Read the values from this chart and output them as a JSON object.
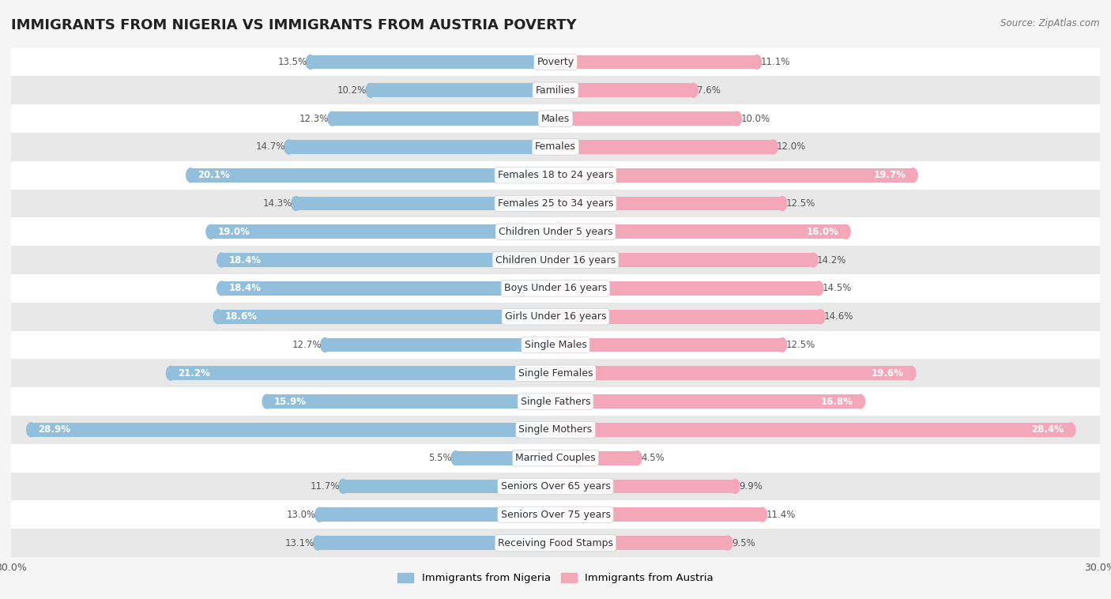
{
  "title": "IMMIGRANTS FROM NIGERIA VS IMMIGRANTS FROM AUSTRIA POVERTY",
  "source": "Source: ZipAtlas.com",
  "categories": [
    "Poverty",
    "Families",
    "Males",
    "Females",
    "Females 18 to 24 years",
    "Females 25 to 34 years",
    "Children Under 5 years",
    "Children Under 16 years",
    "Boys Under 16 years",
    "Girls Under 16 years",
    "Single Males",
    "Single Females",
    "Single Fathers",
    "Single Mothers",
    "Married Couples",
    "Seniors Over 65 years",
    "Seniors Over 75 years",
    "Receiving Food Stamps"
  ],
  "nigeria_values": [
    13.5,
    10.2,
    12.3,
    14.7,
    20.1,
    14.3,
    19.0,
    18.4,
    18.4,
    18.6,
    12.7,
    21.2,
    15.9,
    28.9,
    5.5,
    11.7,
    13.0,
    13.1
  ],
  "austria_values": [
    11.1,
    7.6,
    10.0,
    12.0,
    19.7,
    12.5,
    16.0,
    14.2,
    14.5,
    14.6,
    12.5,
    19.6,
    16.8,
    28.4,
    4.5,
    9.9,
    11.4,
    9.5
  ],
  "nigeria_color": "#92BFDC",
  "austria_color": "#F4A7B9",
  "nigeria_label": "Immigrants from Nigeria",
  "austria_label": "Immigrants from Austria",
  "xlim": 30.0,
  "background_color": "#f5f5f5",
  "row_colors": [
    "#ffffff",
    "#e8e8e8"
  ],
  "title_fontsize": 13,
  "label_fontsize": 9,
  "value_fontsize": 8.5,
  "inside_threshold": 15.0
}
